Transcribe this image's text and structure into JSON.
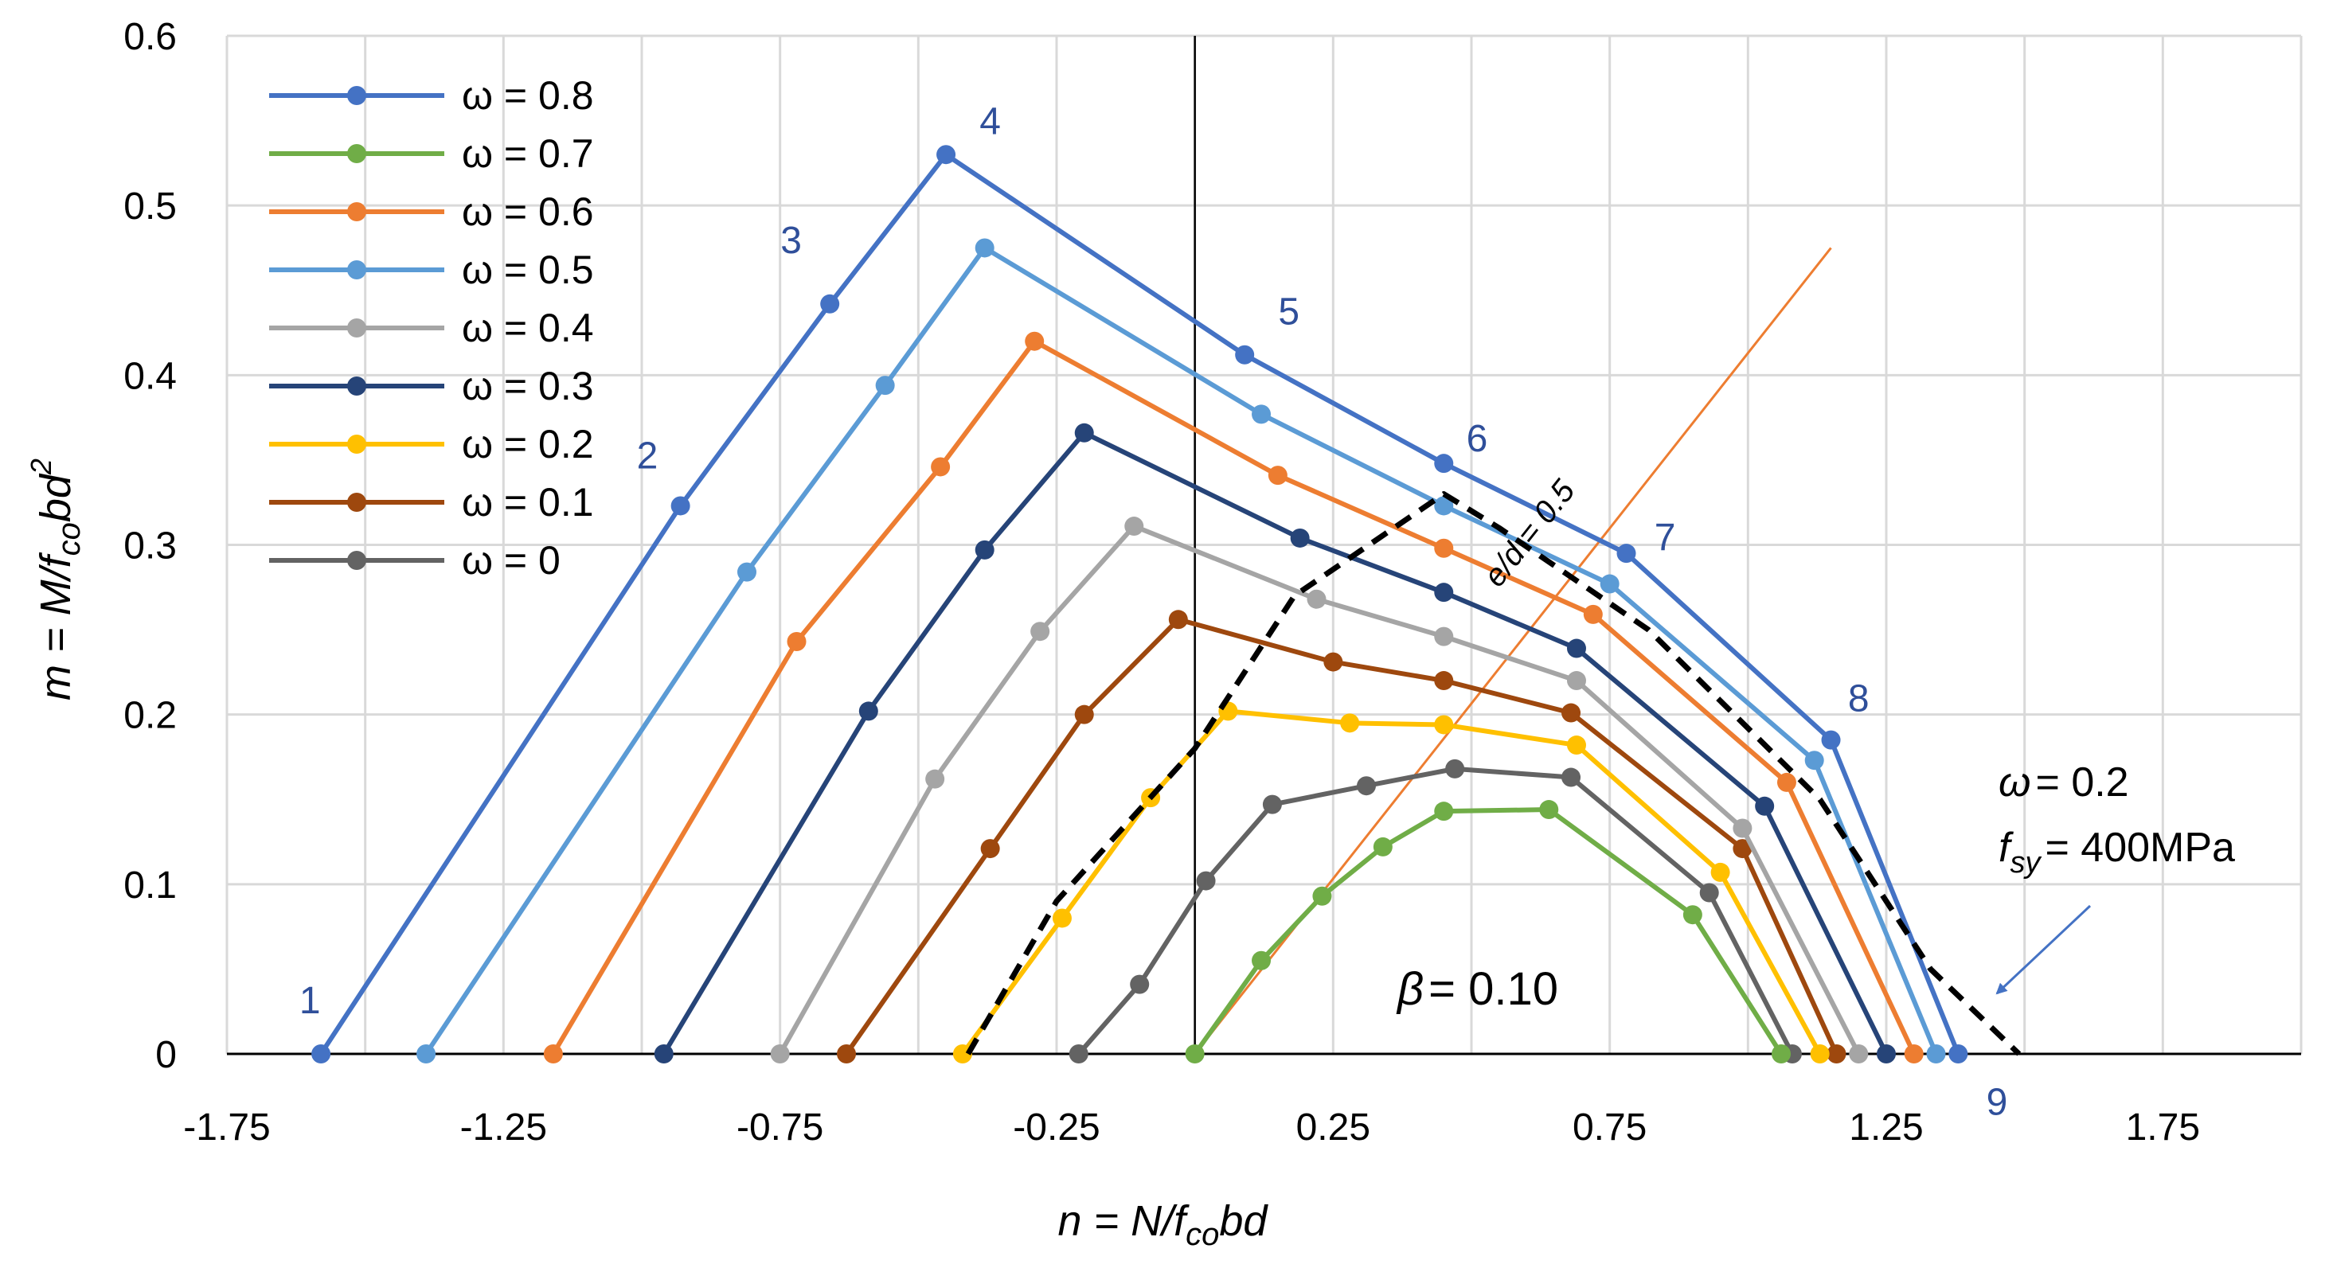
{
  "chart_data": {
    "type": "line",
    "x_axis": {
      "min": -1.75,
      "max": 2.0,
      "tick_values": [
        -1.75,
        -1.25,
        -0.75,
        -0.25,
        0.25,
        0.75,
        1.25,
        1.75
      ],
      "tick_labels": [
        "-1.75",
        "-1.25",
        "-0.75",
        "-0.25",
        "0.25",
        "0.75",
        "1.25",
        "1.75"
      ],
      "label_parts": [
        "n = N/f",
        "co",
        "bd"
      ],
      "grid": true
    },
    "y_axis": {
      "min": 0,
      "max": 0.6,
      "tick_values": [
        0,
        0.1,
        0.2,
        0.3,
        0.4,
        0.5,
        0.6
      ],
      "tick_labels": [
        "0",
        "0.1",
        "0.2",
        "0.3",
        "0.4",
        "0.5",
        "0.6"
      ],
      "label_parts": [
        "m = M/f",
        "co",
        "bd",
        "2"
      ],
      "grid": true
    },
    "series": [
      {
        "name": "ω = 0.8",
        "color": "#4472c4",
        "points": [
          [
            -1.58,
            0
          ],
          [
            -0.93,
            0.323
          ],
          [
            -0.66,
            0.442
          ],
          [
            -0.45,
            0.53
          ],
          [
            0.09,
            0.412
          ],
          [
            0.45,
            0.348
          ],
          [
            0.78,
            0.295
          ],
          [
            1.15,
            0.185
          ],
          [
            1.38,
            0
          ]
        ]
      },
      {
        "name": "ω = 0.7",
        "color": "#70ad47",
        "points": [
          [
            0,
            0
          ],
          [
            0.12,
            0.055
          ],
          [
            0.23,
            0.093
          ],
          [
            0.34,
            0.122
          ],
          [
            0.45,
            0.143
          ],
          [
            0.64,
            0.144
          ],
          [
            0.9,
            0.082
          ],
          [
            1.06,
            0
          ]
        ]
      },
      {
        "name": "ω = 0.6",
        "color": "#ed7d31",
        "points": [
          [
            -1.16,
            0
          ],
          [
            -0.72,
            0.243
          ],
          [
            -0.46,
            0.346
          ],
          [
            -0.29,
            0.42
          ],
          [
            0.15,
            0.341
          ],
          [
            0.45,
            0.298
          ],
          [
            0.72,
            0.259
          ],
          [
            1.07,
            0.16
          ],
          [
            1.3,
            0
          ]
        ]
      },
      {
        "name": "ω = 0.5",
        "color": "#5b9bd5",
        "points": [
          [
            -1.39,
            0
          ],
          [
            -0.81,
            0.284
          ],
          [
            -0.56,
            0.394
          ],
          [
            -0.38,
            0.475
          ],
          [
            0.12,
            0.377
          ],
          [
            0.45,
            0.323
          ],
          [
            0.75,
            0.277
          ],
          [
            1.12,
            0.173
          ],
          [
            1.34,
            0
          ]
        ]
      },
      {
        "name": "ω = 0.4",
        "color": "#a5a5a5",
        "points": [
          [
            -0.75,
            0
          ],
          [
            -0.47,
            0.162
          ],
          [
            -0.28,
            0.249
          ],
          [
            -0.11,
            0.311
          ],
          [
            0.22,
            0.268
          ],
          [
            0.45,
            0.246
          ],
          [
            0.69,
            0.22
          ],
          [
            0.99,
            0.133
          ],
          [
            1.2,
            0
          ]
        ]
      },
      {
        "name": "ω = 0.3",
        "color": "#264478",
        "points": [
          [
            -0.96,
            0
          ],
          [
            -0.59,
            0.202
          ],
          [
            -0.38,
            0.297
          ],
          [
            -0.2,
            0.366
          ],
          [
            0.19,
            0.304
          ],
          [
            0.45,
            0.272
          ],
          [
            0.69,
            0.239
          ],
          [
            1.03,
            0.146
          ],
          [
            1.25,
            0
          ]
        ]
      },
      {
        "name": "ω = 0.2",
        "color": "#ffc000",
        "points": [
          [
            -0.42,
            0
          ],
          [
            -0.24,
            0.08
          ],
          [
            -0.08,
            0.151
          ],
          [
            0.06,
            0.202
          ],
          [
            0.28,
            0.195
          ],
          [
            0.45,
            0.194
          ],
          [
            0.69,
            0.182
          ],
          [
            0.95,
            0.107
          ],
          [
            1.13,
            0
          ]
        ]
      },
      {
        "name": "ω = 0.1",
        "color": "#9e480e",
        "points": [
          [
            -0.63,
            0
          ],
          [
            -0.37,
            0.121
          ],
          [
            -0.2,
            0.2
          ],
          [
            -0.03,
            0.256
          ],
          [
            0.25,
            0.231
          ],
          [
            0.45,
            0.22
          ],
          [
            0.68,
            0.201
          ],
          [
            0.99,
            0.121
          ],
          [
            1.16,
            0
          ]
        ]
      },
      {
        "name": "ω = 0",
        "color": "#636363",
        "points": [
          [
            -0.21,
            0
          ],
          [
            -0.1,
            0.041
          ],
          [
            0.02,
            0.102
          ],
          [
            0.14,
            0.147
          ],
          [
            0.31,
            0.158
          ],
          [
            0.47,
            0.168
          ],
          [
            0.68,
            0.163
          ],
          [
            0.93,
            0.095
          ],
          [
            1.08,
            0
          ]
        ]
      }
    ],
    "dashed_envelope": {
      "color": "#000000",
      "points": [
        [
          -0.41,
          0
        ],
        [
          -0.25,
          0.09
        ],
        [
          0,
          0.18
        ],
        [
          0.18,
          0.27
        ],
        [
          0.45,
          0.33
        ],
        [
          0.55,
          0.31
        ],
        [
          0.82,
          0.25
        ],
        [
          1.13,
          0.15
        ],
        [
          1.33,
          0.05
        ],
        [
          1.49,
          0
        ]
      ]
    },
    "ed_line": {
      "label": "e/d = 0.5",
      "color": "#ed7d31",
      "points": [
        [
          0,
          0
        ],
        [
          1.15,
          0.475
        ]
      ]
    },
    "vertical_line_x": 0,
    "point_labels": [
      {
        "text": "1",
        "x": -1.6,
        "y": 0.032
      },
      {
        "text": "2",
        "x": -0.99,
        "y": 0.353
      },
      {
        "text": "3",
        "x": -0.73,
        "y": 0.48
      },
      {
        "text": "4",
        "x": -0.37,
        "y": 0.55
      },
      {
        "text": "5",
        "x": 0.17,
        "y": 0.438
      },
      {
        "text": "6",
        "x": 0.51,
        "y": 0.363
      },
      {
        "text": "7",
        "x": 0.85,
        "y": 0.305
      },
      {
        "text": "8",
        "x": 1.2,
        "y": 0.21
      },
      {
        "text": "9",
        "x": 1.45,
        "y": -0.028
      }
    ],
    "annotations": {
      "beta": {
        "symbol": "β",
        "text": "= 0.10"
      },
      "omega": {
        "symbol": "ω",
        "text": "= 0.2"
      },
      "fsy": {
        "symbol": "f",
        "sub": "sy",
        "text": "= 400MPa"
      }
    },
    "legend": {
      "position": "top-left"
    }
  }
}
